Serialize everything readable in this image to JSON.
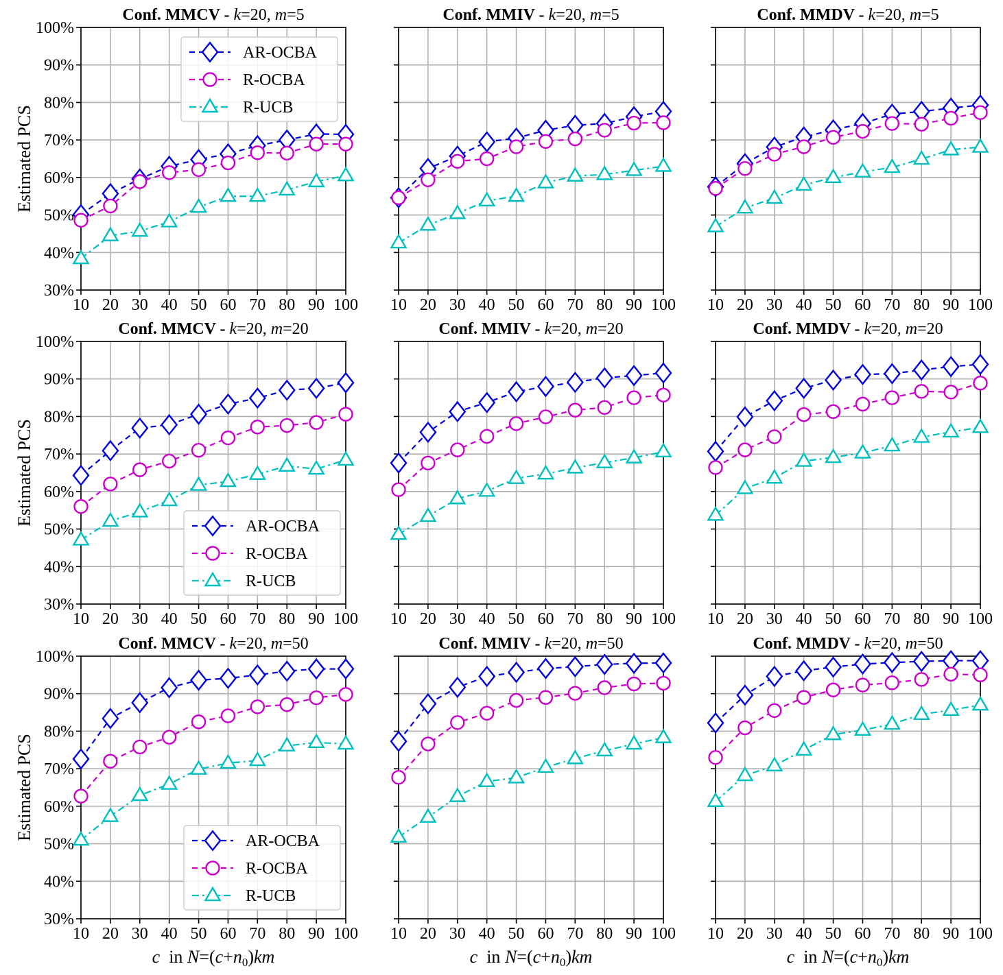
{
  "chart_data": {
    "type": "line",
    "x": [
      10,
      20,
      30,
      40,
      50,
      60,
      70,
      80,
      90,
      100
    ],
    "xticks": [
      "10",
      "20",
      "30",
      "40",
      "50",
      "60",
      "70",
      "80",
      "90",
      "100"
    ],
    "yticks": [
      "30%",
      "40%",
      "50%",
      "60%",
      "70%",
      "80%",
      "90%",
      "100%"
    ],
    "ylim": [
      30,
      100
    ],
    "xlim": [
      10,
      100
    ],
    "ylabel": "Estimated PCS",
    "xlabel": "c  in N=(c+n₀)km",
    "grid": true,
    "series_styles": [
      {
        "name": "AR-OCBA",
        "color": "#0000dd",
        "marker": "diamond",
        "dash": "8,6"
      },
      {
        "name": "R-OCBA",
        "color": "#cc00cc",
        "marker": "circle",
        "dash": "8,6"
      },
      {
        "name": "R-UCB",
        "color": "#00bfbf",
        "marker": "triangle",
        "dash": "10,5,3,5"
      }
    ],
    "panels": [
      {
        "title": "Conf. MMCV - k=20, m=5",
        "legend": "upper-center",
        "series": [
          {
            "name": "AR-OCBA",
            "values": [
              50.1,
              55.7,
              59.6,
              63.0,
              64.8,
              66.3,
              68.5,
              70.0,
              71.6,
              71.5
            ]
          },
          {
            "name": "R-OCBA",
            "values": [
              48.6,
              52.4,
              58.9,
              61.3,
              62.1,
              63.9,
              66.6,
              66.5,
              68.9,
              68.9
            ]
          },
          {
            "name": "R-UCB",
            "values": [
              38.4,
              44.5,
              45.7,
              48.2,
              52.1,
              55.0,
              55.0,
              56.7,
              58.9,
              60.5
            ]
          }
        ]
      },
      {
        "title": "Conf. MMIV - k=20, m=5",
        "legend": "none",
        "series": [
          {
            "name": "AR-OCBA",
            "values": [
              54.6,
              62.4,
              65.7,
              69.5,
              70.5,
              72.6,
              73.9,
              74.4,
              76.2,
              77.6
            ]
          },
          {
            "name": "R-OCBA",
            "values": [
              54.6,
              59.4,
              64.3,
              65.0,
              68.2,
              69.6,
              70.3,
              72.6,
              74.5,
              74.6
            ]
          },
          {
            "name": "R-UCB",
            "values": [
              42.6,
              47.3,
              50.4,
              53.8,
              55.0,
              58.6,
              60.4,
              60.8,
              61.9,
              63.0
            ]
          }
        ]
      },
      {
        "title": "Conf. MMDV - k=20, m=5",
        "legend": "none",
        "series": [
          {
            "name": "AR-OCBA",
            "values": [
              57.5,
              63.7,
              68.1,
              70.8,
              72.7,
              74.4,
              76.9,
              77.6,
              78.5,
              79.3
            ]
          },
          {
            "name": "R-OCBA",
            "values": [
              57.1,
              62.4,
              66.2,
              68.2,
              70.7,
              72.3,
              74.4,
              74.2,
              75.8,
              77.3
            ]
          },
          {
            "name": "R-UCB",
            "values": [
              46.9,
              51.9,
              54.5,
              58.0,
              60.0,
              61.5,
              62.7,
              64.9,
              67.4,
              68.1
            ]
          }
        ]
      },
      {
        "title": "Conf. MMCV - k=20, m=20",
        "legend": "lower-center",
        "series": [
          {
            "name": "AR-OCBA",
            "values": [
              64.3,
              70.9,
              76.9,
              77.8,
              80.6,
              83.3,
              84.9,
              87.0,
              87.5,
              89.0
            ]
          },
          {
            "name": "R-OCBA",
            "values": [
              56.0,
              62.0,
              65.8,
              68.1,
              71.0,
              74.3,
              77.2,
              77.6,
              78.4,
              80.6
            ]
          },
          {
            "name": "R-UCB",
            "values": [
              47.1,
              52.1,
              54.6,
              57.6,
              61.7,
              62.7,
              64.6,
              66.8,
              66.0,
              68.4
            ]
          }
        ]
      },
      {
        "title": "Conf. MMIV - k=20, m=20",
        "legend": "none",
        "series": [
          {
            "name": "AR-OCBA",
            "values": [
              67.6,
              75.8,
              81.3,
              83.7,
              86.6,
              88.0,
              89.1,
              90.3,
              90.9,
              91.6
            ]
          },
          {
            "name": "R-OCBA",
            "values": [
              60.5,
              67.6,
              71.1,
              74.7,
              78.1,
              79.9,
              81.7,
              82.4,
              85.0,
              85.7
            ]
          },
          {
            "name": "R-UCB",
            "values": [
              48.6,
              53.4,
              58.1,
              60.1,
              63.5,
              64.7,
              66.3,
              67.7,
              69.0,
              70.6
            ]
          }
        ]
      },
      {
        "title": "Conf. MMDV - k=20, m=20",
        "legend": "none",
        "series": [
          {
            "name": "AR-OCBA",
            "values": [
              70.7,
              79.9,
              84.2,
              87.5,
              89.7,
              91.2,
              91.4,
              92.4,
              93.3,
              93.9
            ]
          },
          {
            "name": "R-OCBA",
            "values": [
              66.4,
              71.1,
              74.6,
              80.5,
              81.3,
              83.3,
              85.0,
              86.7,
              86.5,
              88.9
            ]
          },
          {
            "name": "R-UCB",
            "values": [
              53.7,
              60.8,
              63.6,
              68.1,
              69.1,
              70.3,
              72.2,
              74.5,
              75.9,
              77.1
            ]
          }
        ]
      },
      {
        "title": "Conf. MMCV - k=20, m=50",
        "legend": "lower-center",
        "series": [
          {
            "name": "AR-OCBA",
            "values": [
              72.6,
              83.4,
              87.6,
              91.6,
              93.6,
              94.1,
              95.0,
              96.0,
              96.6,
              96.6
            ]
          },
          {
            "name": "R-OCBA",
            "values": [
              62.7,
              72.0,
              75.8,
              78.4,
              82.5,
              84.1,
              86.5,
              87.1,
              88.9,
              89.8
            ]
          },
          {
            "name": "R-UCB",
            "values": [
              51.0,
              57.3,
              62.9,
              65.9,
              69.9,
              71.5,
              72.2,
              76.1,
              77.0,
              76.6
            ]
          }
        ]
      },
      {
        "title": "Conf. MMIV - k=20, m=50",
        "legend": "none",
        "series": [
          {
            "name": "AR-OCBA",
            "values": [
              77.3,
              87.3,
              91.7,
              94.6,
              95.7,
              96.7,
              97.2,
              97.8,
              98.1,
              98.2
            ]
          },
          {
            "name": "R-OCBA",
            "values": [
              67.7,
              76.6,
              82.3,
              84.8,
              88.2,
              89.0,
              90.1,
              91.6,
              92.6,
              92.8
            ]
          },
          {
            "name": "R-UCB",
            "values": [
              51.8,
              57.1,
              62.6,
              66.6,
              67.6,
              70.4,
              72.7,
              74.8,
              76.6,
              78.3
            ]
          }
        ]
      },
      {
        "title": "Conf. MMDV - k=20, m=50",
        "legend": "none",
        "series": [
          {
            "name": "AR-OCBA",
            "values": [
              82.2,
              89.6,
              94.6,
              96.1,
              97.1,
              97.9,
              98.3,
              98.6,
              98.8,
              98.8
            ]
          },
          {
            "name": "R-OCBA",
            "values": [
              73.0,
              80.9,
              85.5,
              89.0,
              91.0,
              92.3,
              92.9,
              93.8,
              95.2,
              95.0
            ]
          },
          {
            "name": "R-UCB",
            "values": [
              61.3,
              68.2,
              70.8,
              75.0,
              79.1,
              80.3,
              81.9,
              84.5,
              85.6,
              87.0
            ]
          }
        ]
      }
    ]
  }
}
